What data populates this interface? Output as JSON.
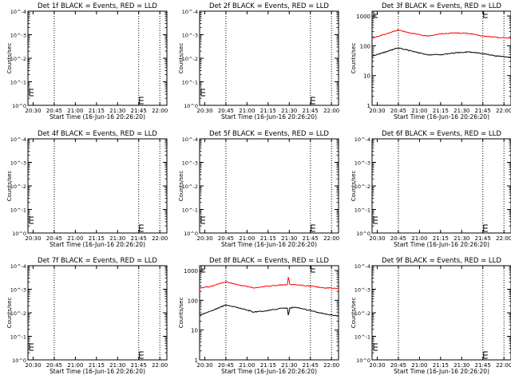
{
  "chart_data": [
    {
      "type": "line",
      "title": "Det 1f BLACK = Events, RED = LLD",
      "xlabel": "Start Time (16-Jun-16 20:26:20)",
      "ylabel": "Counts/sec",
      "y_scale": "log",
      "ylim_exponents": [
        0,
        4
      ],
      "y_tick_labels": [
        "10^0",
        "10^-1",
        "10^-2",
        "10^-3",
        "10^-4"
      ],
      "x_tick_labels": [
        "20:30",
        "20:45",
        "21:00",
        "21:15",
        "21:30",
        "21:45",
        "22:00"
      ],
      "xlim": [
        "20:26:20",
        "22:05:00"
      ],
      "markers": [
        "20:45",
        "21:45",
        "22:00"
      ],
      "series": []
    },
    {
      "type": "line",
      "title": "Det 2f BLACK = Events, RED = LLD",
      "xlabel": "Start Time (16-Jun-16 20:26:20)",
      "ylabel": "Counts/sec",
      "y_scale": "log",
      "ylim_exponents": [
        0,
        4
      ],
      "y_tick_labels": [
        "10^0",
        "10^-1",
        "10^-2",
        "10^-3",
        "10^-4"
      ],
      "x_tick_labels": [
        "20:30",
        "20:45",
        "21:00",
        "21:15",
        "21:30",
        "21:45",
        "22:00"
      ],
      "xlim": [
        "20:26:20",
        "22:05:00"
      ],
      "markers": [
        "20:45",
        "21:45",
        "22:00"
      ],
      "series": []
    },
    {
      "type": "line",
      "title": "Det 3f BLACK = Events, RED = LLD",
      "xlabel": "Start Time (16-Jun-16 20:26:20)",
      "ylabel": "Counts/sec",
      "y_scale": "log",
      "ylim": [
        1,
        1000
      ],
      "y_tick_labels": [
        "1",
        "10",
        "100",
        "1000"
      ],
      "x_tick_labels": [
        "20:30",
        "20:45",
        "21:00",
        "21:15",
        "21:30",
        "21:45",
        "22:00"
      ],
      "xlim": [
        "20:26:20",
        "22:05:00"
      ],
      "markers": [
        "20:45",
        "21:45",
        "22:00"
      ],
      "series": [
        {
          "color": "#ff0000",
          "x": [
            "20:26:20",
            "20:35",
            "20:45",
            "20:55",
            "21:05",
            "21:15",
            "21:25",
            "21:35",
            "21:45",
            "21:55",
            "22:05"
          ],
          "y": [
            180,
            240,
            340,
            260,
            210,
            250,
            270,
            260,
            210,
            190,
            180
          ]
        },
        {
          "color": "#000000",
          "x": [
            "20:26:20",
            "20:35",
            "20:45",
            "20:55",
            "21:05",
            "21:15",
            "21:25",
            "21:35",
            "21:45",
            "21:55",
            "22:05"
          ],
          "y": [
            45,
            60,
            85,
            65,
            50,
            50,
            58,
            62,
            55,
            45,
            40
          ]
        }
      ]
    },
    {
      "type": "line",
      "title": "Det 4f BLACK = Events, RED = LLD",
      "xlabel": "Start Time (16-Jun-16 20:26:20)",
      "ylabel": "Counts/sec",
      "y_scale": "log",
      "ylim_exponents": [
        0,
        4
      ],
      "y_tick_labels": [
        "10^0",
        "10^-1",
        "10^-2",
        "10^-3",
        "10^-4"
      ],
      "x_tick_labels": [
        "20:30",
        "20:45",
        "21:00",
        "21:15",
        "21:30",
        "21:45",
        "22:00"
      ],
      "xlim": [
        "20:26:20",
        "22:05:00"
      ],
      "markers": [
        "20:45",
        "21:45",
        "22:00"
      ],
      "series": []
    },
    {
      "type": "line",
      "title": "Det 5f BLACK = Events, RED = LLD",
      "xlabel": "Start Time (16-Jun-16 20:26:20)",
      "ylabel": "Counts/sec",
      "y_scale": "log",
      "ylim_exponents": [
        0,
        4
      ],
      "y_tick_labels": [
        "10^0",
        "10^-1",
        "10^-2",
        "10^-3",
        "10^-4"
      ],
      "x_tick_labels": [
        "20:30",
        "20:45",
        "21:00",
        "21:15",
        "21:30",
        "21:45",
        "22:00"
      ],
      "xlim": [
        "20:26:20",
        "22:05:00"
      ],
      "markers": [
        "20:45",
        "21:45",
        "22:00"
      ],
      "series": []
    },
    {
      "type": "line",
      "title": "Det 6f BLACK = Events, RED = LLD",
      "xlabel": "Start Time (16-Jun-16 20:26:20)",
      "ylabel": "Counts/sec",
      "y_scale": "log",
      "ylim_exponents": [
        0,
        4
      ],
      "y_tick_labels": [
        "10^0",
        "10^-1",
        "10^-2",
        "10^-3",
        "10^-4"
      ],
      "x_tick_labels": [
        "20:30",
        "20:45",
        "21:00",
        "21:15",
        "21:30",
        "21:45",
        "22:00"
      ],
      "xlim": [
        "20:26:20",
        "22:05:00"
      ],
      "markers": [
        "20:45",
        "21:45",
        "22:00"
      ],
      "series": []
    },
    {
      "type": "line",
      "title": "Det 7f BLACK = Events, RED = LLD",
      "xlabel": "Start Time (16-Jun-16 20:26:20)",
      "ylabel": "Counts/sec",
      "y_scale": "log",
      "ylim_exponents": [
        0,
        4
      ],
      "y_tick_labels": [
        "10^0",
        "10^-1",
        "10^-2",
        "10^-3",
        "10^-4"
      ],
      "x_tick_labels": [
        "20:30",
        "20:45",
        "21:00",
        "21:15",
        "21:30",
        "21:45",
        "22:00"
      ],
      "xlim": [
        "20:26:20",
        "22:05:00"
      ],
      "markers": [
        "20:45",
        "21:45",
        "22:00"
      ],
      "series": []
    },
    {
      "type": "line",
      "title": "Det 8f BLACK = Events, RED = LLD",
      "xlabel": "Start Time (16-Jun-16 20:26:20)",
      "ylabel": "Counts/sec",
      "y_scale": "log",
      "ylim": [
        1,
        1000
      ],
      "y_tick_labels": [
        "1",
        "10",
        "100",
        "1000"
      ],
      "x_tick_labels": [
        "20:30",
        "20:45",
        "21:00",
        "21:15",
        "21:30",
        "21:45",
        "22:00"
      ],
      "xlim": [
        "20:26:20",
        "22:05:00"
      ],
      "markers": [
        "20:45",
        "21:45",
        "22:00"
      ],
      "series": [
        {
          "color": "#ff0000",
          "x": [
            "20:26:20",
            "20:35",
            "20:45",
            "20:55",
            "21:05",
            "21:15",
            "21:25",
            "21:29",
            "21:29:30",
            "21:30",
            "21:35",
            "21:45",
            "21:55",
            "22:05"
          ],
          "y": [
            250,
            300,
            420,
            320,
            260,
            300,
            330,
            330,
            1000,
            330,
            330,
            300,
            260,
            250
          ]
        },
        {
          "color": "#000000",
          "x": [
            "20:26:20",
            "20:35",
            "20:45",
            "20:55",
            "21:05",
            "21:15",
            "21:25",
            "21:29",
            "21:29:30",
            "21:30",
            "21:35",
            "21:45",
            "21:55",
            "22:05"
          ],
          "y": [
            32,
            45,
            70,
            55,
            40,
            45,
            55,
            55,
            20,
            55,
            58,
            45,
            35,
            30
          ]
        }
      ]
    },
    {
      "type": "line",
      "title": "Det 9f BLACK = Events, RED = LLD",
      "xlabel": "Start Time (16-Jun-16 20:26:20)",
      "ylabel": "Counts/sec",
      "y_scale": "log",
      "ylim_exponents": [
        0,
        4
      ],
      "y_tick_labels": [
        "10^0",
        "10^-1",
        "10^-2",
        "10^-3",
        "10^-4"
      ],
      "x_tick_labels": [
        "20:30",
        "20:45",
        "21:00",
        "21:15",
        "21:30",
        "21:45",
        "22:00"
      ],
      "xlim": [
        "20:26:20",
        "22:05:00"
      ],
      "markers": [
        "20:45",
        "21:45",
        "22:00"
      ],
      "series": []
    }
  ]
}
